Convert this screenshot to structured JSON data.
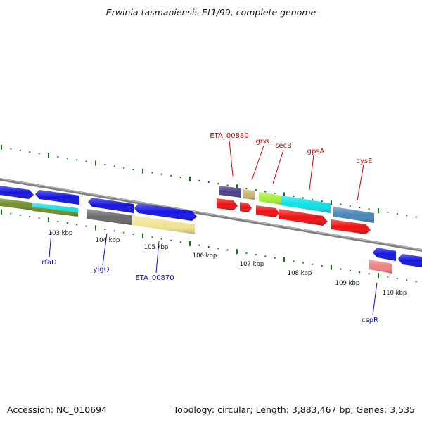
{
  "title": "Erwinia tasmaniensis Et1/99, complete genome",
  "accession_text": "Accession: NC_010694",
  "topology_text": "Topology: circular; Length: 3,883,467 bp; Genes: 3,535",
  "kbp_labels": [
    "103 kbp",
    "104 kbp",
    "105 kbp",
    "106 kbp",
    "107 kbp",
    "108 kbp",
    "109 kbp",
    "110 kbp"
  ],
  "gene_labels_top": [
    "ETA_00880",
    "grxC",
    "secB",
    "gpsA",
    "cysE"
  ],
  "gene_labels_bottom": [
    "rfaD",
    "yigQ",
    "ETA_00870",
    "cspR"
  ],
  "colors": {
    "backbone": "#8a8a8a",
    "tick": "#0a7a0a",
    "label_red": "#d40000",
    "label_blue": "#1010c0",
    "gene_blue": "#1414e0",
    "gene_red": "#ee1010",
    "gene_cyan": "#10e0e8",
    "gene_olive": "#6f8f2a",
    "gene_gray": "#6a6a6a",
    "gene_khaki": "#f0e494",
    "gene_purple": "#4a3f8c",
    "gene_tan": "#c8b670",
    "gene_lime": "#a8f03a",
    "gene_steel": "#4a86b8",
    "gene_pink": "#f08080"
  }
}
